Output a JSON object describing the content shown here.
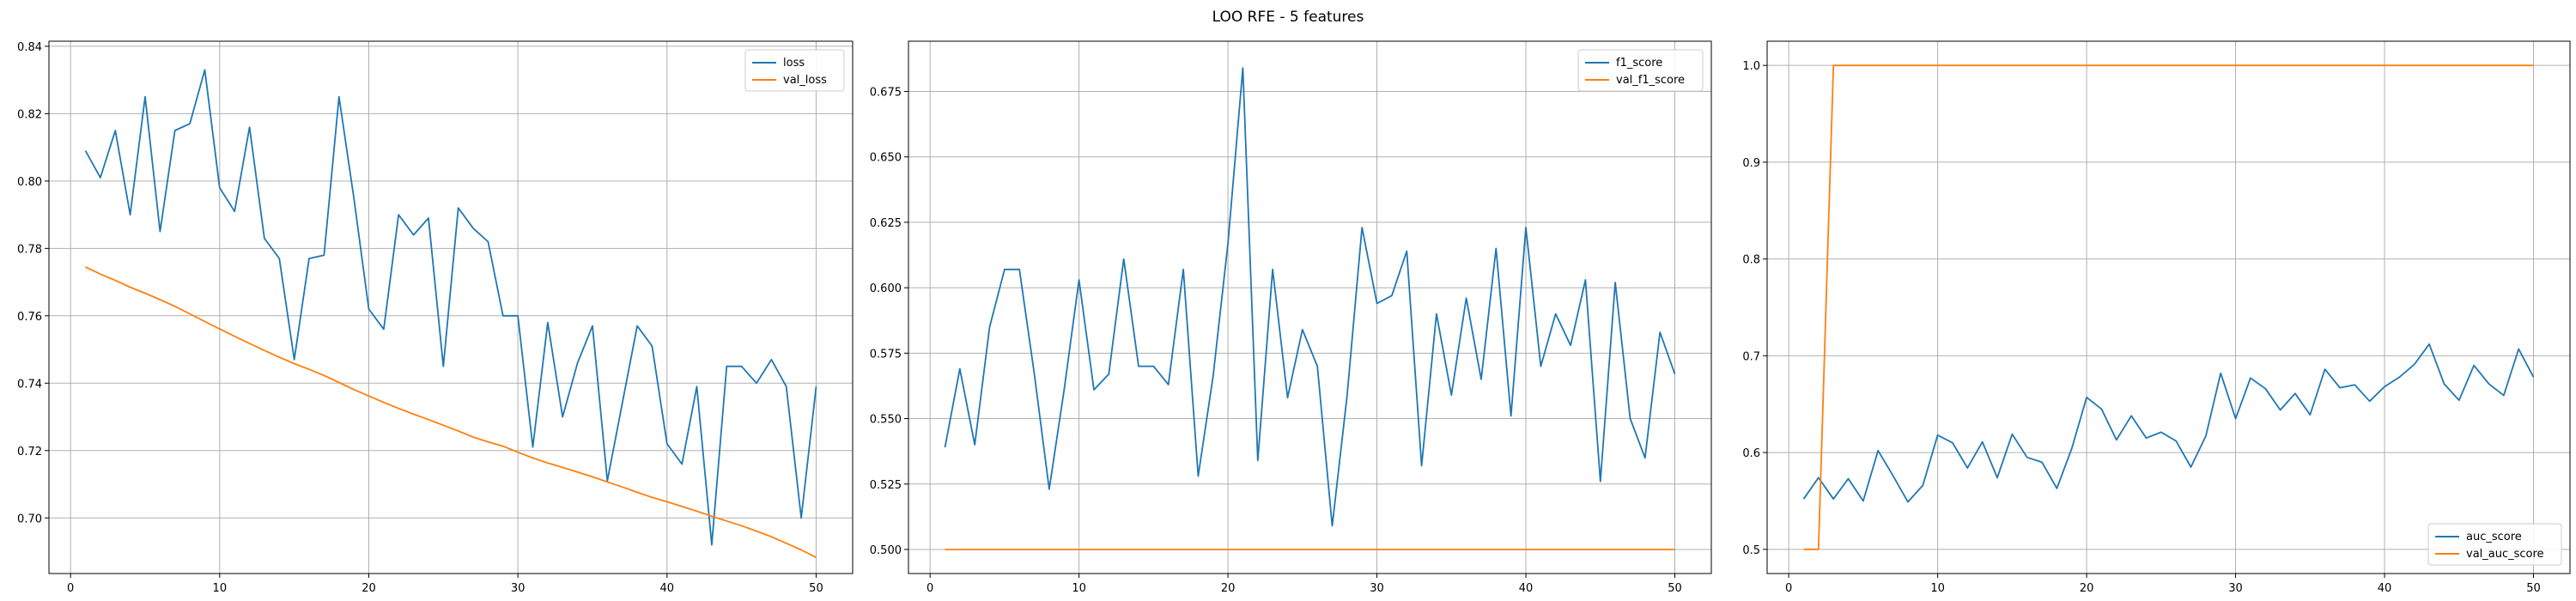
{
  "suptitle": "LOO RFE - 5 features",
  "colors": {
    "series1": "#1f77b4",
    "series2": "#ff7f0e",
    "grid": "#b0b0b0",
    "axis": "#000000"
  },
  "chart_data": [
    {
      "type": "line",
      "legend_position": "top-right",
      "grid": true,
      "xlim": [
        -1.45,
        52.45
      ],
      "ylim": [
        0.6835,
        0.8415
      ],
      "xticks": [
        0,
        10,
        20,
        30,
        40,
        50
      ],
      "yticks": [
        0.7,
        0.72,
        0.74,
        0.76,
        0.78,
        0.8,
        0.82,
        0.84
      ],
      "ytick_decimals": 2,
      "x": [
        1,
        2,
        3,
        4,
        5,
        6,
        7,
        8,
        9,
        10,
        11,
        12,
        13,
        14,
        15,
        16,
        17,
        18,
        19,
        20,
        21,
        22,
        23,
        24,
        25,
        26,
        27,
        28,
        29,
        30,
        31,
        32,
        33,
        34,
        35,
        36,
        37,
        38,
        39,
        40,
        41,
        42,
        43,
        44,
        45,
        46,
        47,
        48,
        49,
        50
      ],
      "series": [
        {
          "name": "loss",
          "values": [
            0.809,
            0.801,
            0.815,
            0.79,
            0.825,
            0.785,
            0.815,
            0.817,
            0.833,
            0.798,
            0.791,
            0.816,
            0.783,
            0.777,
            0.747,
            0.777,
            0.778,
            0.825,
            0.795,
            0.762,
            0.756,
            0.79,
            0.784,
            0.789,
            0.745,
            0.792,
            0.786,
            0.782,
            0.76,
            0.76,
            0.721,
            0.758,
            0.73,
            0.746,
            0.757,
            0.711,
            0.734,
            0.757,
            0.751,
            0.722,
            0.716,
            0.739,
            0.692,
            0.745,
            0.745,
            0.74,
            0.747,
            0.739,
            0.7,
            0.739
          ]
        },
        {
          "name": "val_loss",
          "values": [
            0.7745,
            0.7724,
            0.7705,
            0.7685,
            0.7667,
            0.7648,
            0.7628,
            0.7606,
            0.7583,
            0.7561,
            0.7539,
            0.7518,
            0.7497,
            0.7477,
            0.7458,
            0.7441,
            0.7423,
            0.7402,
            0.7381,
            0.7362,
            0.7343,
            0.7325,
            0.7308,
            0.7292,
            0.7275,
            0.7258,
            0.724,
            0.7226,
            0.7213,
            0.7195,
            0.7178,
            0.7163,
            0.715,
            0.7136,
            0.7122,
            0.7107,
            0.7092,
            0.7076,
            0.7061,
            0.7048,
            0.7034,
            0.702,
            0.7005,
            0.6991,
            0.6977,
            0.6961,
            0.6944,
            0.6925,
            0.6905,
            0.6883
          ]
        }
      ]
    },
    {
      "type": "line",
      "legend_position": "top-right",
      "grid": true,
      "xlim": [
        -1.45,
        52.45
      ],
      "ylim": [
        0.4908,
        0.6942
      ],
      "xticks": [
        0,
        10,
        20,
        30,
        40,
        50
      ],
      "yticks": [
        0.5,
        0.525,
        0.55,
        0.575,
        0.6,
        0.625,
        0.65,
        0.675
      ],
      "ytick_decimals": 3,
      "x": [
        1,
        2,
        3,
        4,
        5,
        6,
        7,
        8,
        9,
        10,
        11,
        12,
        13,
        14,
        15,
        16,
        17,
        18,
        19,
        20,
        21,
        22,
        23,
        24,
        25,
        26,
        27,
        28,
        29,
        30,
        31,
        32,
        33,
        34,
        35,
        36,
        37,
        38,
        39,
        40,
        41,
        42,
        43,
        44,
        45,
        46,
        47,
        48,
        49,
        50
      ],
      "series": [
        {
          "name": "f1_score",
          "values": [
            0.539,
            0.569,
            0.54,
            0.585,
            0.607,
            0.607,
            0.567,
            0.523,
            0.561,
            0.603,
            0.561,
            0.567,
            0.611,
            0.57,
            0.57,
            0.563,
            0.607,
            0.528,
            0.566,
            0.617,
            0.684,
            0.534,
            0.607,
            0.558,
            0.584,
            0.57,
            0.509,
            0.559,
            0.623,
            0.594,
            0.597,
            0.614,
            0.532,
            0.59,
            0.559,
            0.596,
            0.565,
            0.615,
            0.551,
            0.623,
            0.57,
            0.59,
            0.578,
            0.603,
            0.526,
            0.602,
            0.55,
            0.535,
            0.583,
            0.567
          ]
        },
        {
          "name": "val_f1_score",
          "values": [
            0.5,
            0.5,
            0.5,
            0.5,
            0.5,
            0.5,
            0.5,
            0.5,
            0.5,
            0.5,
            0.5,
            0.5,
            0.5,
            0.5,
            0.5,
            0.5,
            0.5,
            0.5,
            0.5,
            0.5,
            0.5,
            0.5,
            0.5,
            0.5,
            0.5,
            0.5,
            0.5,
            0.5,
            0.5,
            0.5,
            0.5,
            0.5,
            0.5,
            0.5,
            0.5,
            0.5,
            0.5,
            0.5,
            0.5,
            0.5,
            0.5,
            0.5,
            0.5,
            0.5,
            0.5,
            0.5,
            0.5,
            0.5,
            0.5,
            0.5
          ]
        }
      ]
    },
    {
      "type": "line",
      "legend_position": "bottom-right",
      "grid": true,
      "xlim": [
        -1.45,
        52.45
      ],
      "ylim": [
        0.475,
        1.025
      ],
      "xticks": [
        0,
        10,
        20,
        30,
        40,
        50
      ],
      "yticks": [
        0.5,
        0.6,
        0.7,
        0.8,
        0.9,
        1.0
      ],
      "ytick_decimals": 1,
      "x": [
        1,
        2,
        3,
        4,
        5,
        6,
        7,
        8,
        9,
        10,
        11,
        12,
        13,
        14,
        15,
        16,
        17,
        18,
        19,
        20,
        21,
        22,
        23,
        24,
        25,
        26,
        27,
        28,
        29,
        30,
        31,
        32,
        33,
        34,
        35,
        36,
        37,
        38,
        39,
        40,
        41,
        42,
        43,
        44,
        45,
        46,
        47,
        48,
        49,
        50
      ],
      "series": [
        {
          "name": "auc_score",
          "values": [
            0.552,
            0.574,
            0.552,
            0.573,
            0.55,
            0.602,
            0.576,
            0.549,
            0.566,
            0.618,
            0.61,
            0.584,
            0.611,
            0.574,
            0.619,
            0.595,
            0.59,
            0.563,
            0.604,
            0.657,
            0.645,
            0.613,
            0.638,
            0.615,
            0.621,
            0.612,
            0.585,
            0.617,
            0.682,
            0.635,
            0.677,
            0.666,
            0.644,
            0.661,
            0.639,
            0.686,
            0.667,
            0.67,
            0.653,
            0.668,
            0.678,
            0.691,
            0.712,
            0.671,
            0.654,
            0.69,
            0.671,
            0.659,
            0.707,
            0.678
          ]
        },
        {
          "name": "val_auc_score",
          "values": [
            0.5,
            0.5,
            1.0,
            1.0,
            1.0,
            1.0,
            1.0,
            1.0,
            1.0,
            1.0,
            1.0,
            1.0,
            1.0,
            1.0,
            1.0,
            1.0,
            1.0,
            1.0,
            1.0,
            1.0,
            1.0,
            1.0,
            1.0,
            1.0,
            1.0,
            1.0,
            1.0,
            1.0,
            1.0,
            1.0,
            1.0,
            1.0,
            1.0,
            1.0,
            1.0,
            1.0,
            1.0,
            1.0,
            1.0,
            1.0,
            1.0,
            1.0,
            1.0,
            1.0,
            1.0,
            1.0,
            1.0,
            1.0,
            1.0,
            1.0
          ]
        }
      ]
    }
  ]
}
